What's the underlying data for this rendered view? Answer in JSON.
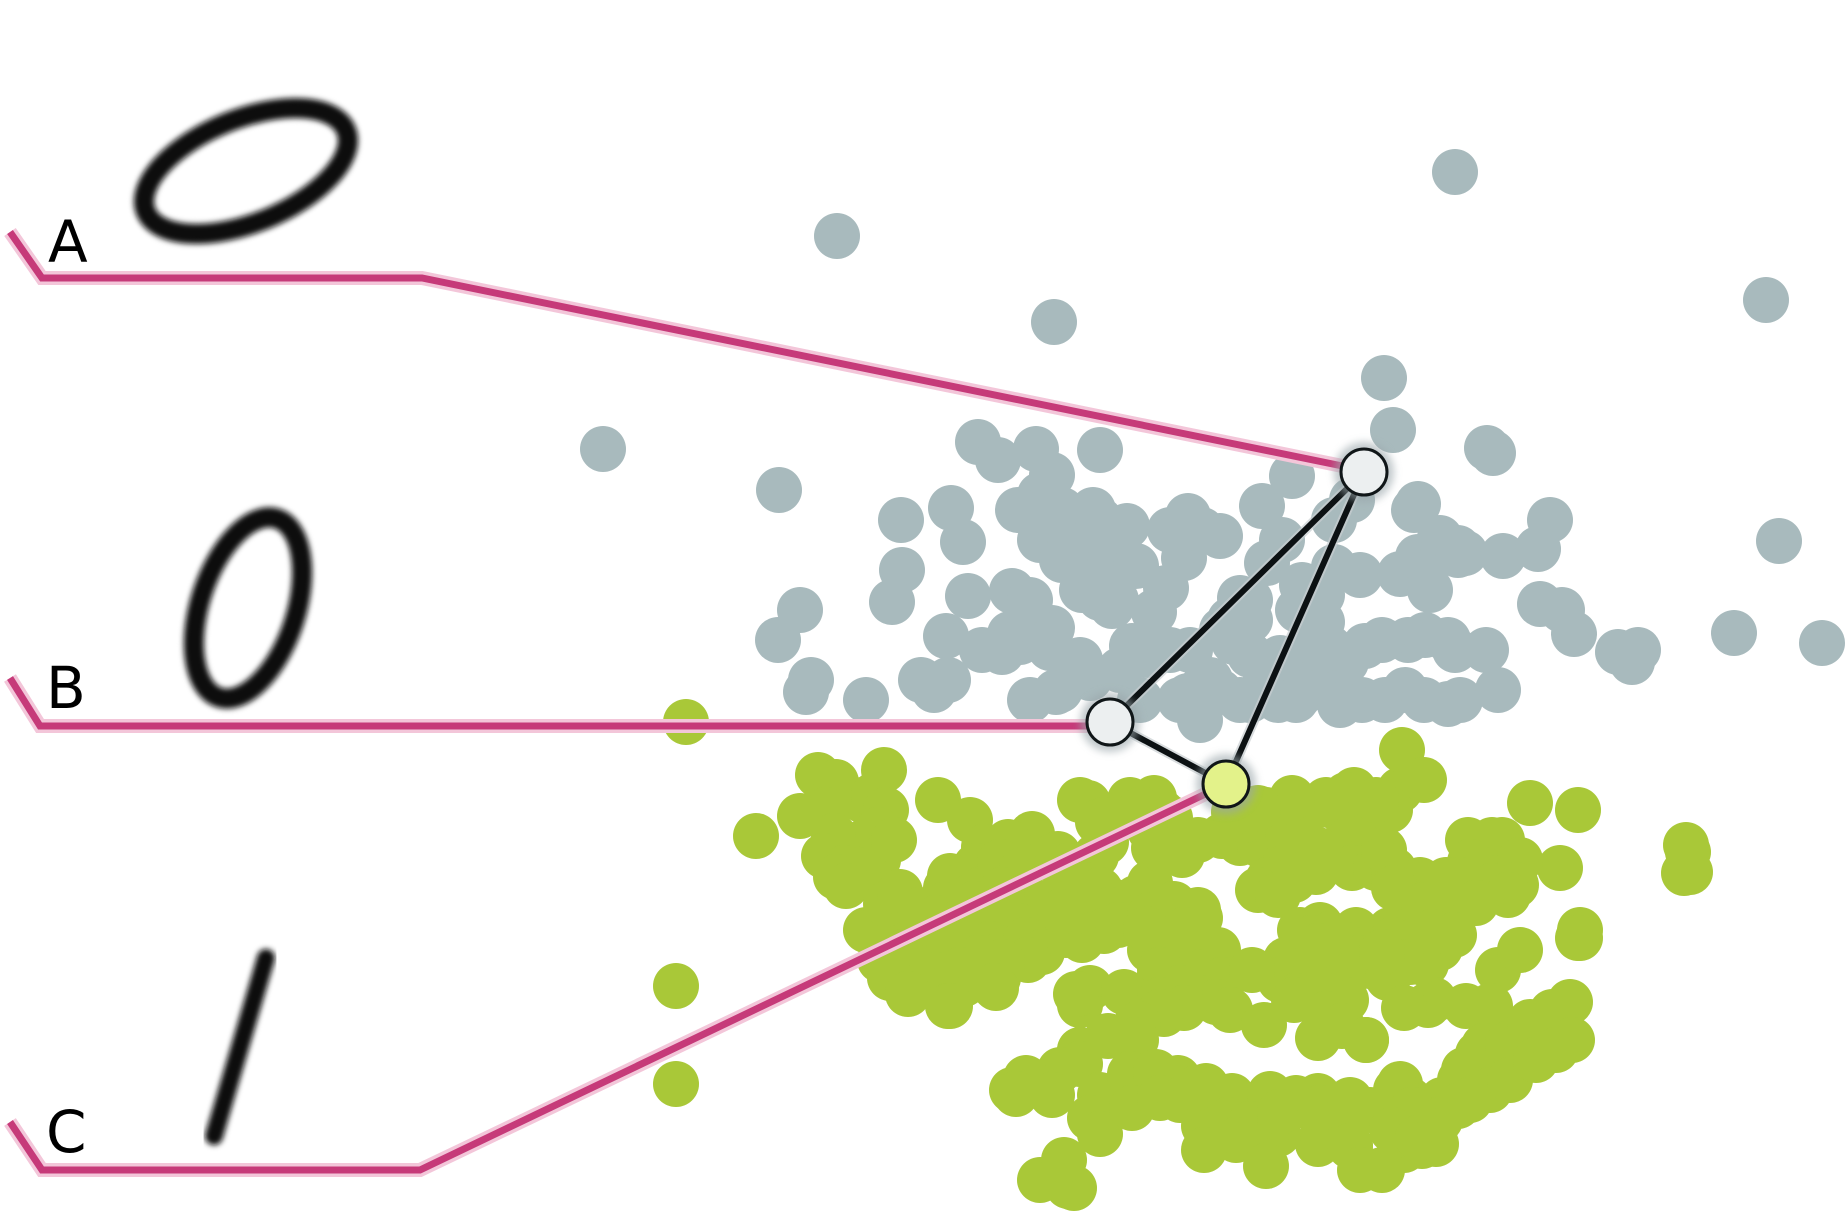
{
  "labels": {
    "a": "A",
    "b": "B",
    "c": "C"
  },
  "colors": {
    "cluster_zero": "#a8babd",
    "cluster_one": "#a9c838",
    "leader": "#c63a79",
    "node_zero": "#eceff0",
    "node_one": "#e3f28a"
  },
  "examples": [
    {
      "label": "A",
      "digit": "zero"
    },
    {
      "label": "B",
      "digit": "zero"
    },
    {
      "label": "C",
      "digit": "one"
    }
  ]
}
